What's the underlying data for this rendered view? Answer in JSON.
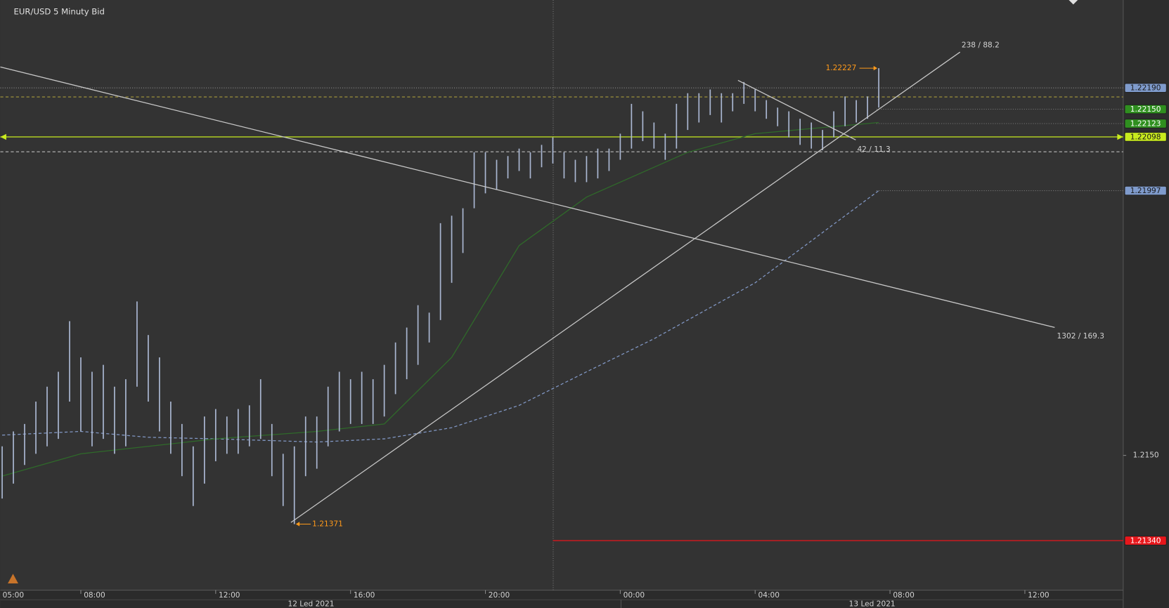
{
  "chart_data": {
    "type": "range_bar",
    "title": "EUR/USD  5 Minuty Bid",
    "xlim": [
      5.613,
      38.917
    ],
    "ylim": [
      1.21247,
      1.22355
    ],
    "xticks": [
      {
        "value": 5,
        "label": "05:00"
      },
      {
        "value": 8,
        "label": "08:00"
      },
      {
        "value": 12,
        "label": "12:00"
      },
      {
        "value": 16,
        "label": "16:00"
      },
      {
        "value": 20,
        "label": "20:00"
      },
      {
        "value": 24,
        "label": "00:00"
      },
      {
        "value": 28,
        "label": "04:00"
      },
      {
        "value": 32,
        "label": "08:00"
      },
      {
        "value": 36,
        "label": "12:00"
      }
    ],
    "yticks": [
      {
        "value": 1.215,
        "label": "1.2150"
      }
    ],
    "dates": [
      "12 Led 2021",
      "13 Led 2021"
    ],
    "drawings": [
      "238 / 88.2",
      "42 / 11.3",
      "1302 / 169.3"
    ],
    "bar_color": "#aab7d2",
    "x": [
      5.667,
      6,
      6.333,
      6.667,
      7,
      7.333,
      7.667,
      8,
      8.333,
      8.667,
      9,
      9.333,
      9.667,
      10,
      10.333,
      10.667,
      11,
      11.333,
      11.667,
      12,
      12.333,
      12.667,
      13,
      13.333,
      13.667,
      14,
      14.333,
      14.667,
      15,
      15.333,
      15.667,
      16,
      16.333,
      16.667,
      17,
      17.333,
      17.667,
      18,
      18.333,
      18.667,
      19,
      19.333,
      19.667,
      20,
      20.333,
      20.667,
      21,
      21.333,
      21.667,
      22,
      22.333,
      22.667,
      23,
      23.333,
      23.667,
      24,
      24.333,
      24.667,
      25,
      25.333,
      25.667,
      26,
      26.333,
      26.667,
      27,
      27.333,
      27.667,
      28,
      28.333,
      28.667,
      29,
      29.333,
      29.667,
      30,
      30.333,
      30.667,
      31,
      31.333,
      31.667
    ],
    "high": [
      1.21517,
      1.21545,
      1.21559,
      1.21601,
      1.21629,
      1.21657,
      1.21752,
      1.21684,
      1.21657,
      1.2167,
      1.21629,
      1.21643,
      1.21789,
      1.21726,
      1.21684,
      1.21601,
      1.21559,
      1.21517,
      1.21573,
      1.21587,
      1.21573,
      1.21587,
      1.21594,
      1.21643,
      1.21559,
      1.21503,
      1.21517,
      1.21573,
      1.21573,
      1.21629,
      1.21657,
      1.21643,
      1.21657,
      1.21643,
      1.2167,
      1.21712,
      1.2174,
      1.21782,
      1.21768,
      1.21936,
      1.2195,
      1.21964,
      1.22069,
      1.22069,
      1.22055,
      1.22062,
      1.22076,
      1.22069,
      1.22083,
      1.22097,
      1.22069,
      1.22055,
      1.22062,
      1.22076,
      1.22076,
      1.22104,
      1.2216,
      1.22146,
      1.22125,
      1.22104,
      1.2216,
      1.2218,
      1.2218,
      1.22187,
      1.2218,
      1.2218,
      1.22201,
      1.22187,
      1.22167,
      1.22153,
      1.22146,
      1.22132,
      1.22125,
      1.22111,
      1.22146,
      1.22174,
      1.22167,
      1.22174,
      1.22227
    ],
    "low": [
      1.21419,
      1.21447,
      1.21482,
      1.21503,
      1.21517,
      1.21531,
      1.21601,
      1.21545,
      1.21517,
      1.21531,
      1.21503,
      1.21517,
      1.21629,
      1.21601,
      1.21545,
      1.21503,
      1.21461,
      1.21405,
      1.21447,
      1.21489,
      1.21503,
      1.21503,
      1.21517,
      1.21531,
      1.21461,
      1.21405,
      1.21371,
      1.21461,
      1.21475,
      1.21517,
      1.21545,
      1.21559,
      1.21559,
      1.21559,
      1.21573,
      1.21615,
      1.21643,
      1.2167,
      1.21712,
      1.21754,
      1.21824,
      1.2188,
      1.21964,
      1.21992,
      1.21999,
      1.2202,
      1.22034,
      1.2202,
      1.22041,
      1.22048,
      1.2202,
      1.22013,
      1.22013,
      1.2202,
      1.22034,
      1.22055,
      1.22076,
      1.2209,
      1.22076,
      1.22055,
      1.22076,
      1.22111,
      1.22125,
      1.22139,
      1.22125,
      1.22146,
      1.2216,
      1.22146,
      1.22132,
      1.22118,
      1.22097,
      1.22083,
      1.22076,
      1.22073,
      1.22097,
      1.22118,
      1.22125,
      1.22132,
      1.22153
    ],
    "lines": [
      {
        "color": "#8197c4",
        "style": "dashed",
        "x": [
          5.667,
          8,
          10,
          12,
          15,
          17,
          19,
          21,
          23,
          25,
          26,
          28,
          31.667
        ],
        "values": [
          1.21538,
          1.21545,
          1.21534,
          1.21531,
          1.21525,
          1.21531,
          1.21552,
          1.21594,
          1.21657,
          1.21719,
          1.21754,
          1.21824,
          1.21997
        ]
      },
      {
        "color": "#2f6a2a",
        "style": "solid",
        "x": [
          5.667,
          8,
          10,
          12,
          15,
          17,
          19,
          21,
          23,
          25,
          26,
          28,
          31.667
        ],
        "values": [
          1.21461,
          1.21503,
          1.21517,
          1.21531,
          1.21545,
          1.21559,
          1.21684,
          1.21894,
          1.21985,
          1.22041,
          1.22069,
          1.22104,
          1.22125
        ]
      }
    ],
    "levels": [
      {
        "value": 1.22173,
        "color": "#a89a3c",
        "style": "dashed"
      },
      {
        "value": 1.2207,
        "color": "#bdbdbd",
        "style": "dashed"
      },
      {
        "value": 1.2219,
        "label": "1.22190",
        "color": "#8a8a8a",
        "style": "dotted",
        "box": "#7f9bcc",
        "text": "#1a1a1a"
      },
      {
        "value": 1.2215,
        "label": "1.22150",
        "color": "#7a7a7a",
        "style": "dotted",
        "box": "#2f8f1f",
        "text": "#ffffff",
        "xstart": 31.6
      },
      {
        "value": 1.22123,
        "label": "1.22123",
        "color": "#7a7a7a",
        "style": "dotted",
        "box": "#2f8f1f",
        "text": "#ffffff",
        "xstart": 31.6
      },
      {
        "value": 1.22098,
        "label": "1.22098",
        "color": "#c8ea1e",
        "style": "solid",
        "box": "#c8ea1e",
        "text": "#1a1a1a",
        "arrows": true
      },
      {
        "value": 1.21997,
        "label": "1.21997",
        "color": "#7a7a7a",
        "style": "dotted",
        "box": "#7f9bcc",
        "text": "#1a1a1a",
        "xstart": 31.6
      },
      {
        "value": 1.2134,
        "label": "1.21340",
        "color": "#e8161b",
        "style": "solid",
        "box": "#e8161b",
        "text": "#ffffff",
        "xstart": 22
      }
    ],
    "annotations": [
      {
        "value": 1.22227,
        "label": "1.22227",
        "x": 31.667,
        "side": "left",
        "color": "#ff9a1a"
      },
      {
        "value": 1.21371,
        "label": "1.21371",
        "x": 14.333,
        "side": "right",
        "color": "#ff9a1a"
      }
    ]
  }
}
